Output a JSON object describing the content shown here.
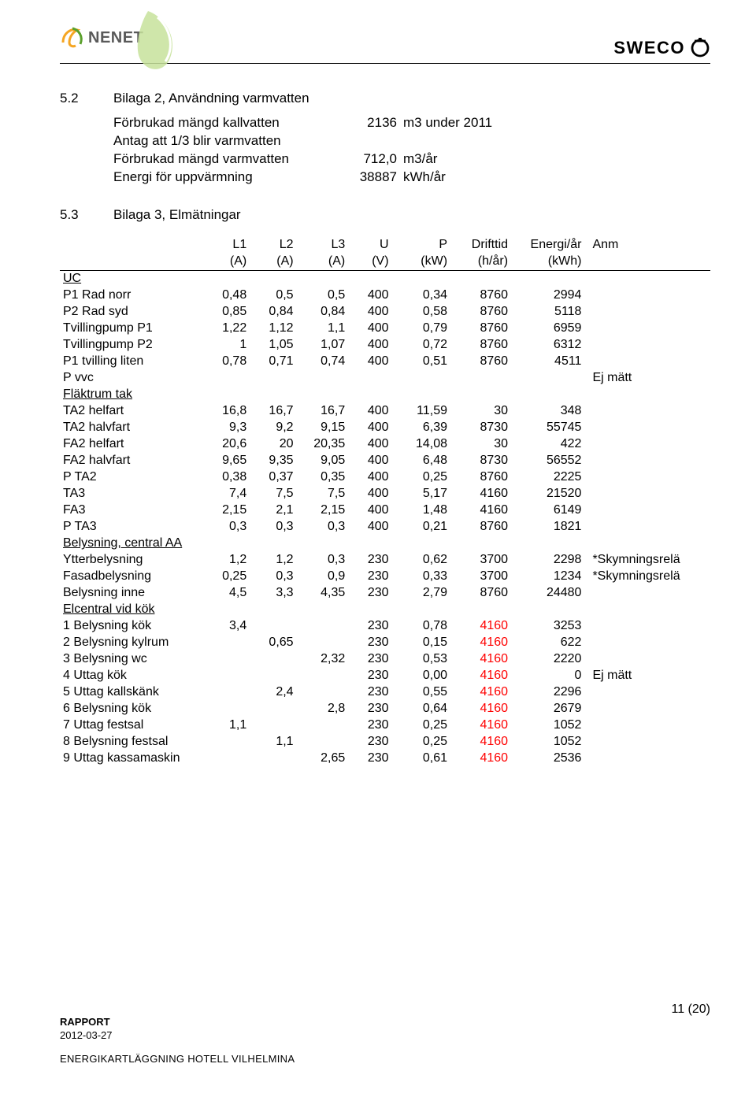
{
  "logos": {
    "nenet_text": "NENET",
    "sweco_text": "SWECO"
  },
  "section52": {
    "num": "5.2",
    "title": "Bilaga 2, Användning varmvatten",
    "rows": [
      {
        "label": "Förbrukad mängd kallvatten",
        "val": "2136",
        "unit": "m3 under 2011"
      },
      {
        "label": "Antag att 1/3 blir varmvatten",
        "val": "",
        "unit": ""
      },
      {
        "label": "Förbrukad mängd varmvatten",
        "val": "712,0",
        "unit": "m3/år"
      },
      {
        "label": "Energi för uppvärmning",
        "val": "38887",
        "unit": "kWh/år"
      }
    ]
  },
  "section53": {
    "num": "5.3",
    "title": "Bilaga 3, Elmätningar",
    "head1": [
      "",
      "L1",
      "L2",
      "L3",
      "U",
      "P",
      "Drifttid",
      "Energi/år",
      "Anm"
    ],
    "head2": [
      "",
      "(A)",
      "(A)",
      "(A)",
      "(V)",
      "(kW)",
      "(h/år)",
      "(kWh)",
      ""
    ],
    "groups": [
      {
        "name": "UC",
        "rows": [
          {
            "label": "P1 Rad norr",
            "v": [
              "0,48",
              "0,5",
              "0,5",
              "400",
              "0,34",
              "8760",
              "2994"
            ],
            "anm": ""
          },
          {
            "label": "P2 Rad syd",
            "v": [
              "0,85",
              "0,84",
              "0,84",
              "400",
              "0,58",
              "8760",
              "5118"
            ],
            "anm": ""
          },
          {
            "label": "Tvillingpump P1",
            "v": [
              "1,22",
              "1,12",
              "1,1",
              "400",
              "0,79",
              "8760",
              "6959"
            ],
            "anm": ""
          },
          {
            "label": "Tvillingpump P2",
            "v": [
              "1",
              "1,05",
              "1,07",
              "400",
              "0,72",
              "8760",
              "6312"
            ],
            "anm": ""
          },
          {
            "label": "P1 tvilling liten",
            "v": [
              "0,78",
              "0,71",
              "0,74",
              "400",
              "0,51",
              "8760",
              "4511"
            ],
            "anm": ""
          },
          {
            "label": "P vvc",
            "v": [
              "",
              "",
              "",
              "",
              "",
              "",
              ""
            ],
            "anm": "Ej mätt"
          }
        ]
      },
      {
        "name": "Fläktrum tak",
        "rows": [
          {
            "label": "TA2 helfart",
            "v": [
              "16,8",
              "16,7",
              "16,7",
              "400",
              "11,59",
              "30",
              "348"
            ],
            "anm": ""
          },
          {
            "label": "TA2 halvfart",
            "v": [
              "9,3",
              "9,2",
              "9,15",
              "400",
              "6,39",
              "8730",
              "55745"
            ],
            "anm": ""
          },
          {
            "label": "FA2 helfart",
            "v": [
              "20,6",
              "20",
              "20,35",
              "400",
              "14,08",
              "30",
              "422"
            ],
            "anm": ""
          },
          {
            "label": "FA2 halvfart",
            "v": [
              "9,65",
              "9,35",
              "9,05",
              "400",
              "6,48",
              "8730",
              "56552"
            ],
            "anm": ""
          },
          {
            "label": "P TA2",
            "v": [
              "0,38",
              "0,37",
              "0,35",
              "400",
              "0,25",
              "8760",
              "2225"
            ],
            "anm": ""
          },
          {
            "label": "TA3",
            "v": [
              "7,4",
              "7,5",
              "7,5",
              "400",
              "5,17",
              "4160",
              "21520"
            ],
            "anm": ""
          },
          {
            "label": "FA3",
            "v": [
              "2,15",
              "2,1",
              "2,15",
              "400",
              "1,48",
              "4160",
              "6149"
            ],
            "anm": ""
          },
          {
            "label": "P TA3",
            "v": [
              "0,3",
              "0,3",
              "0,3",
              "400",
              "0,21",
              "8760",
              "1821"
            ],
            "anm": ""
          }
        ]
      },
      {
        "name": "Belysning, central AA",
        "rows": [
          {
            "label": "Ytterbelysning",
            "v": [
              "1,2",
              "1,2",
              "0,3",
              "230",
              "0,62",
              "3700",
              "2298"
            ],
            "anm": "*Skymningsrelä"
          },
          {
            "label": "Fasadbelysning",
            "v": [
              "0,25",
              "0,3",
              "0,9",
              "230",
              "0,33",
              "3700",
              "1234"
            ],
            "anm": "*Skymningsrelä"
          },
          {
            "label": "Belysning inne",
            "v": [
              "4,5",
              "3,3",
              "4,35",
              "230",
              "2,79",
              "8760",
              "24480"
            ],
            "anm": ""
          }
        ]
      },
      {
        "name": "Elcentral vid kök",
        "rows": [
          {
            "label": "1 Belysning kök",
            "v": [
              "3,4",
              "",
              "",
              "230",
              "0,78",
              "4160",
              "3253"
            ],
            "redcols": [
              5
            ],
            "anm": ""
          },
          {
            "label": "2 Belysning kylrum",
            "v": [
              "",
              "0,65",
              "",
              "230",
              "0,15",
              "4160",
              "622"
            ],
            "redcols": [
              5
            ],
            "anm": ""
          },
          {
            "label": "3 Belysning wc",
            "v": [
              "",
              "",
              "2,32",
              "230",
              "0,53",
              "4160",
              "2220"
            ],
            "redcols": [
              5
            ],
            "anm": ""
          },
          {
            "label": "4 Uttag kök",
            "v": [
              "",
              "",
              "",
              "230",
              "0,00",
              "4160",
              "0"
            ],
            "redcols": [
              5
            ],
            "anm": "Ej mätt"
          },
          {
            "label": "5 Uttag kallskänk",
            "v": [
              "",
              "2,4",
              "",
              "230",
              "0,55",
              "4160",
              "2296"
            ],
            "redcols": [
              5
            ],
            "anm": ""
          },
          {
            "label": "6 Belysning kök",
            "v": [
              "",
              "",
              "2,8",
              "230",
              "0,64",
              "4160",
              "2679"
            ],
            "redcols": [
              5
            ],
            "anm": ""
          },
          {
            "label": "7 Uttag festsal",
            "v": [
              "1,1",
              "",
              "",
              "230",
              "0,25",
              "4160",
              "1052"
            ],
            "redcols": [
              5
            ],
            "anm": ""
          },
          {
            "label": "8 Belysning festsal",
            "v": [
              "",
              "1,1",
              "",
              "230",
              "0,25",
              "4160",
              "1052"
            ],
            "redcols": [
              5
            ],
            "anm": ""
          },
          {
            "label": "9 Uttag kassamaskin",
            "v": [
              "",
              "",
              "2,65",
              "230",
              "0,61",
              "4160",
              "2536"
            ],
            "redcols": [
              5
            ],
            "anm": ""
          }
        ]
      }
    ]
  },
  "footer": {
    "rapport": "RAPPORT",
    "date": "2012-03-27",
    "title": "ENERGIKARTLÄGGNING HOTELL VILHELMINA",
    "page": "11 (20)"
  }
}
